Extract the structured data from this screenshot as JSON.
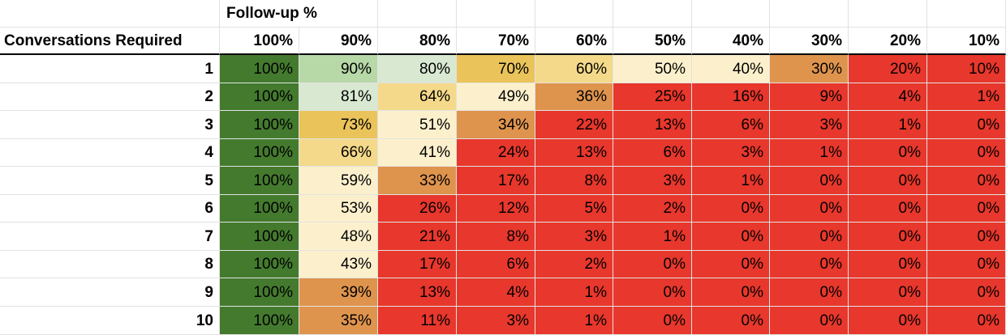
{
  "sheet": {
    "top_label": "Follow-up %",
    "row_header": "Conversations Required",
    "columns": [
      "100%",
      "90%",
      "80%",
      "70%",
      "60%",
      "50%",
      "40%",
      "30%",
      "20%",
      "10%"
    ],
    "rows": [
      {
        "label": "1",
        "values": [
          "100%",
          "90%",
          "80%",
          "70%",
          "60%",
          "50%",
          "40%",
          "30%",
          "20%",
          "10%"
        ]
      },
      {
        "label": "2",
        "values": [
          "100%",
          "81%",
          "64%",
          "49%",
          "36%",
          "25%",
          "16%",
          "9%",
          "4%",
          "1%"
        ]
      },
      {
        "label": "3",
        "values": [
          "100%",
          "73%",
          "51%",
          "34%",
          "22%",
          "13%",
          "6%",
          "3%",
          "1%",
          "0%"
        ]
      },
      {
        "label": "4",
        "values": [
          "100%",
          "66%",
          "41%",
          "24%",
          "13%",
          "6%",
          "3%",
          "1%",
          "0%",
          "0%"
        ]
      },
      {
        "label": "5",
        "values": [
          "100%",
          "59%",
          "33%",
          "17%",
          "8%",
          "3%",
          "1%",
          "0%",
          "0%",
          "0%"
        ]
      },
      {
        "label": "6",
        "values": [
          "100%",
          "53%",
          "26%",
          "12%",
          "5%",
          "2%",
          "0%",
          "0%",
          "0%",
          "0%"
        ]
      },
      {
        "label": "7",
        "values": [
          "100%",
          "48%",
          "21%",
          "8%",
          "3%",
          "1%",
          "0%",
          "0%",
          "0%",
          "0%"
        ]
      },
      {
        "label": "8",
        "values": [
          "100%",
          "43%",
          "17%",
          "6%",
          "2%",
          "0%",
          "0%",
          "0%",
          "0%",
          "0%"
        ]
      },
      {
        "label": "9",
        "values": [
          "100%",
          "39%",
          "13%",
          "4%",
          "1%",
          "0%",
          "0%",
          "0%",
          "0%",
          "0%"
        ]
      },
      {
        "label": "10",
        "values": [
          "100%",
          "35%",
          "11%",
          "3%",
          "1%",
          "0%",
          "0%",
          "0%",
          "0%",
          "0%"
        ]
      }
    ],
    "colors": {
      "dark_green": "#447a2e",
      "light_green": "#b7d8a7",
      "pale_green": "#d8e8d1",
      "gold": "#eac45a",
      "light_gold": "#f4d98a",
      "cream": "#fcf0cc",
      "orange": "#df944e",
      "red": "#e8372c",
      "grid": "#e2e2e2"
    },
    "cell_colors": [
      [
        "dark_green",
        "light_green",
        "pale_green",
        "gold",
        "light_gold",
        "cream",
        "cream",
        "orange",
        "red",
        "red"
      ],
      [
        "dark_green",
        "pale_green",
        "light_gold",
        "cream",
        "orange",
        "red",
        "red",
        "red",
        "red",
        "red"
      ],
      [
        "dark_green",
        "gold",
        "cream",
        "orange",
        "red",
        "red",
        "red",
        "red",
        "red",
        "red"
      ],
      [
        "dark_green",
        "light_gold",
        "cream",
        "red",
        "red",
        "red",
        "red",
        "red",
        "red",
        "red"
      ],
      [
        "dark_green",
        "cream",
        "orange",
        "red",
        "red",
        "red",
        "red",
        "red",
        "red",
        "red"
      ],
      [
        "dark_green",
        "cream",
        "red",
        "red",
        "red",
        "red",
        "red",
        "red",
        "red",
        "red"
      ],
      [
        "dark_green",
        "cream",
        "red",
        "red",
        "red",
        "red",
        "red",
        "red",
        "red",
        "red"
      ],
      [
        "dark_green",
        "cream",
        "red",
        "red",
        "red",
        "red",
        "red",
        "red",
        "red",
        "red"
      ],
      [
        "dark_green",
        "orange",
        "red",
        "red",
        "red",
        "red",
        "red",
        "red",
        "red",
        "red"
      ],
      [
        "dark_green",
        "orange",
        "red",
        "red",
        "red",
        "red",
        "red",
        "red",
        "red",
        "red"
      ]
    ]
  }
}
